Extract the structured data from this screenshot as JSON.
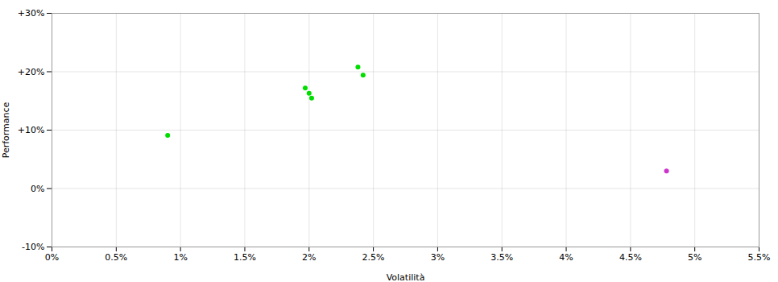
{
  "chart_data": {
    "type": "scatter",
    "xlabel": "Volatilità",
    "ylabel": "Performance",
    "xlim": [
      0.0,
      0.055
    ],
    "ylim": [
      -0.1,
      0.3
    ],
    "xticks": [
      {
        "value": 0.0,
        "label": "0%"
      },
      {
        "value": 0.005,
        "label": "0.5%"
      },
      {
        "value": 0.01,
        "label": "1%"
      },
      {
        "value": 0.015,
        "label": "1.5%"
      },
      {
        "value": 0.02,
        "label": "2%"
      },
      {
        "value": 0.025,
        "label": "2.5%"
      },
      {
        "value": 0.03,
        "label": "3%"
      },
      {
        "value": 0.035,
        "label": "3.5%"
      },
      {
        "value": 0.04,
        "label": "4%"
      },
      {
        "value": 0.045,
        "label": "4.5%"
      },
      {
        "value": 0.05,
        "label": "5%"
      },
      {
        "value": 0.055,
        "label": "5.5%"
      }
    ],
    "yticks": [
      {
        "value": -0.1,
        "label": "-10%"
      },
      {
        "value": 0.0,
        "label": "0%"
      },
      {
        "value": 0.1,
        "label": "+10%"
      },
      {
        "value": 0.2,
        "label": "+20%"
      },
      {
        "value": 0.3,
        "label": "+30%"
      }
    ],
    "grid": true,
    "series": [
      {
        "color": "#00dd00",
        "marker": "o",
        "x": [
          0.009,
          0.0197,
          0.02,
          0.0202,
          0.0238,
          0.0242
        ],
        "values": [
          0.091,
          0.172,
          0.163,
          0.155,
          0.208,
          0.194
        ]
      },
      {
        "color": "#cc33cc",
        "marker": "o",
        "x": [
          0.0478
        ],
        "values": [
          0.03
        ]
      }
    ]
  }
}
